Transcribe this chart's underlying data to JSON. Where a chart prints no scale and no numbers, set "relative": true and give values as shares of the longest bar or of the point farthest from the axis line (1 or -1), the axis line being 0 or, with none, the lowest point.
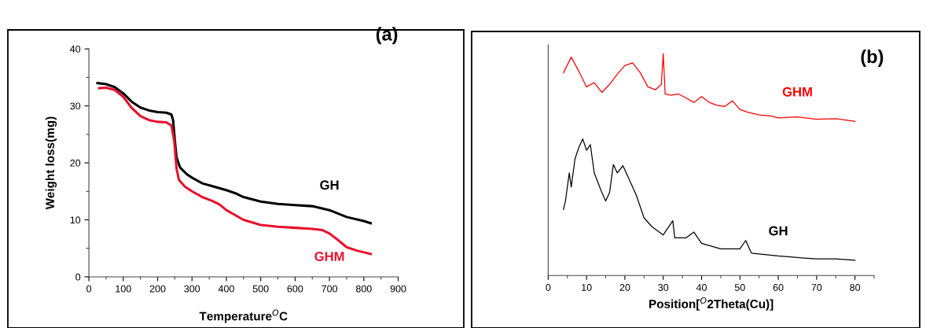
{
  "chart_data": [
    {
      "type": "line",
      "title": "(a)",
      "xlabel": "Temperature$^{O}$C",
      "ylabel": "Weight loss(mg)",
      "xlim": [
        0,
        900
      ],
      "xticks": [
        0,
        100,
        200,
        300,
        400,
        500,
        600,
        700,
        800,
        900
      ],
      "ylim": [
        0,
        40
      ],
      "yticks": [
        0,
        10,
        20,
        30,
        40
      ],
      "grid": false,
      "legend": false,
      "line_style": "solid",
      "marker": "none",
      "series": [
        {
          "name": "GH",
          "color": "#000000",
          "x": [
            25,
            50,
            75,
            100,
            125,
            150,
            175,
            200,
            225,
            240,
            245,
            250,
            255,
            265,
            285,
            300,
            330,
            360,
            400,
            425,
            450,
            500,
            550,
            600,
            650,
            700,
            750,
            800,
            820
          ],
          "values": [
            34.0,
            33.8,
            33.3,
            32.2,
            30.7,
            29.7,
            29.2,
            28.9,
            28.8,
            28.5,
            27.5,
            24,
            21,
            19.2,
            18,
            17.4,
            16.4,
            15.9,
            15.2,
            14.7,
            14,
            13.2,
            12.8,
            12.6,
            12.4,
            11.7,
            10.5,
            9.8,
            9.4
          ]
        },
        {
          "name": "GHM",
          "color": "#e8112d",
          "x": [
            30,
            50,
            75,
            100,
            125,
            150,
            175,
            200,
            225,
            240,
            248,
            255,
            262,
            280,
            300,
            330,
            360,
            380,
            400,
            450,
            500,
            550,
            600,
            650,
            680,
            700,
            720,
            750,
            780,
            820
          ],
          "values": [
            33.1,
            33.2,
            32.8,
            31.6,
            29.6,
            28.2,
            27.5,
            27.2,
            27.1,
            26.6,
            24,
            19,
            17,
            15.8,
            15.0,
            14.0,
            13.3,
            12.7,
            11.7,
            10.0,
            9.1,
            8.8,
            8.6,
            8.4,
            8.2,
            7.6,
            6.7,
            5.2,
            4.6,
            4.0
          ]
        }
      ]
    },
    {
      "type": "line",
      "title": "(b)",
      "xlabel": "Position[$^{O}$2Theta(Cu)]",
      "xlim": [
        0,
        85
      ],
      "xticks": [
        0,
        10,
        20,
        30,
        40,
        50,
        60,
        70,
        80
      ],
      "relative": true,
      "grid": false,
      "legend": false,
      "line_style": "solid",
      "marker": "none",
      "series": [
        {
          "name": "GHM",
          "color": "#ff0000",
          "x": [
            4,
            6,
            8,
            10,
            12,
            14,
            16,
            18,
            20,
            22,
            24,
            26,
            28,
            29.5,
            30,
            30.5,
            32,
            34,
            36,
            38,
            40,
            42,
            44,
            46,
            48,
            50,
            52,
            55,
            58,
            60,
            65,
            70,
            75,
            80
          ],
          "values": [
            0.915,
            0.985,
            0.921,
            0.851,
            0.87,
            0.826,
            0.862,
            0.908,
            0.947,
            0.959,
            0.915,
            0.851,
            0.838,
            0.862,
            1.0,
            0.819,
            0.813,
            0.819,
            0.8,
            0.781,
            0.807,
            0.781,
            0.768,
            0.762,
            0.788,
            0.749,
            0.737,
            0.724,
            0.72,
            0.711,
            0.715,
            0.705,
            0.707,
            0.695
          ]
        },
        {
          "name": "GH",
          "color": "#000000",
          "x": [
            4,
            4.5,
            5.5,
            6,
            7,
            8,
            9,
            10,
            11,
            12,
            14,
            15,
            16,
            17,
            18,
            19.5,
            21,
            23,
            25,
            27,
            30,
            32.5,
            33,
            36,
            38,
            40,
            45,
            50,
            51.5,
            53,
            60,
            65,
            70,
            75,
            80
          ],
          "values": [
            0.298,
            0.336,
            0.463,
            0.399,
            0.527,
            0.578,
            0.616,
            0.565,
            0.59,
            0.463,
            0.374,
            0.336,
            0.374,
            0.501,
            0.463,
            0.495,
            0.438,
            0.361,
            0.26,
            0.221,
            0.183,
            0.247,
            0.17,
            0.17,
            0.196,
            0.145,
            0.12,
            0.12,
            0.158,
            0.101,
            0.088,
            0.081,
            0.075,
            0.075,
            0.069
          ]
        }
      ]
    }
  ]
}
